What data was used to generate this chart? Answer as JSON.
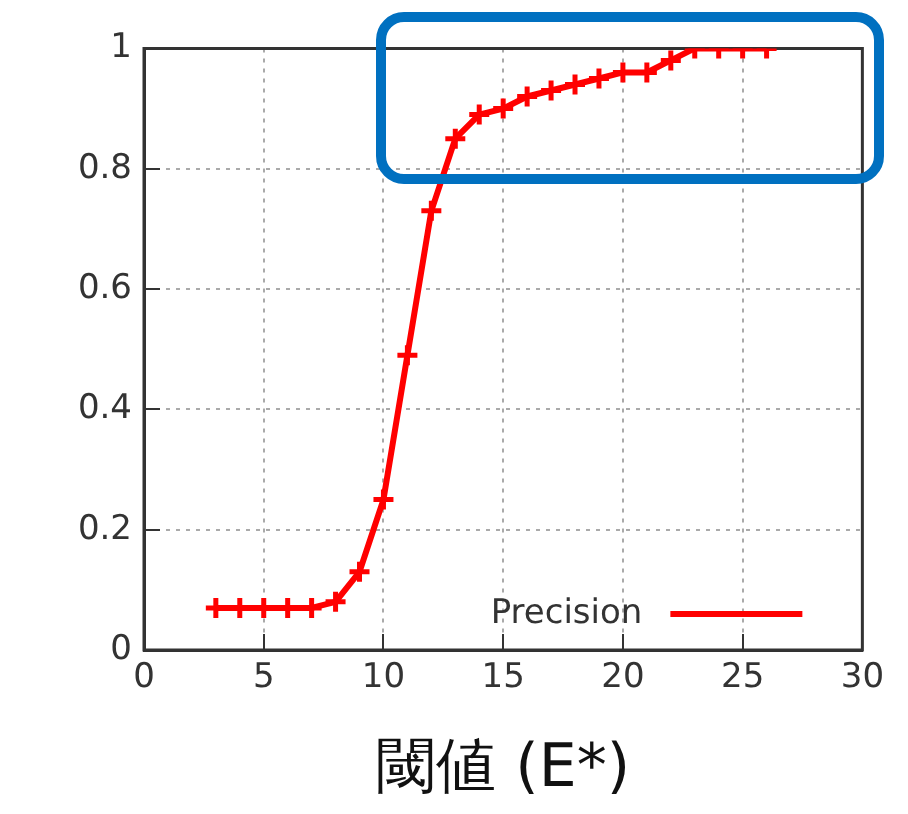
{
  "chart_data": {
    "type": "line",
    "xlabel": "閾値 (E*)",
    "x": [
      3,
      4,
      5,
      6,
      7,
      8,
      9,
      10,
      11,
      12,
      13,
      14,
      15,
      16,
      17,
      18,
      19,
      20,
      21,
      22,
      23,
      24,
      25,
      26
    ],
    "series": [
      {
        "name": "Precision",
        "color": "#ff0000",
        "values": [
          0.07,
          0.07,
          0.07,
          0.07,
          0.07,
          0.08,
          0.13,
          0.25,
          0.49,
          0.73,
          0.85,
          0.89,
          0.9,
          0.92,
          0.93,
          0.94,
          0.95,
          0.96,
          0.96,
          0.98,
          1,
          1,
          1,
          1
        ]
      }
    ],
    "xlim": [
      0,
      30
    ],
    "xticks": [
      0,
      5,
      10,
      15,
      20,
      25,
      30
    ],
    "ylim": [
      0,
      1
    ],
    "yticks": [
      0,
      0.2,
      0.4,
      0.6,
      0.8,
      1
    ],
    "grid": true,
    "legend": "bottom right",
    "marker": "cross",
    "line_style": "solid"
  }
}
